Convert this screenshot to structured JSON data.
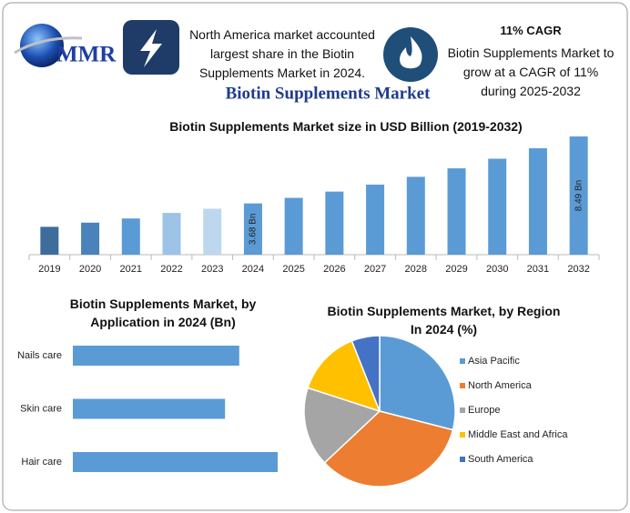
{
  "header": {
    "logo": "MMR",
    "highlight": "North America market accounted largest share in the Biotin Supplements Market in 2024.",
    "cagr_title": "11% CAGR",
    "cagr_text": "Biotin Supplements Market to grow at a CAGR of 11% during 2025-2032"
  },
  "title": "Biotin Supplements Market",
  "chart_data": [
    {
      "type": "bar",
      "title": "Biotin Supplements Market size in USD Billion (2019-2032)",
      "categories": [
        "2019",
        "2020",
        "2021",
        "2022",
        "2023",
        "2024",
        "2025",
        "2026",
        "2027",
        "2028",
        "2029",
        "2030",
        "2031",
        "2032"
      ],
      "values": [
        2.0,
        2.3,
        2.6,
        3.0,
        3.3,
        3.68,
        4.08,
        4.53,
        5.03,
        5.59,
        6.2,
        6.89,
        7.64,
        8.49
      ],
      "value_labels": [
        null,
        null,
        null,
        null,
        null,
        "3.68 Bn",
        null,
        null,
        null,
        null,
        null,
        null,
        null,
        "8.49 Bn"
      ],
      "colors": [
        "#3d6d9c",
        "#4a82bb",
        "#5b9bd5",
        "#9dc3e6",
        "#bdd7ee",
        "#5b9bd5",
        "#5b9bd5",
        "#5b9bd5",
        "#5b9bd5",
        "#5b9bd5",
        "#5b9bd5",
        "#5b9bd5",
        "#5b9bd5",
        "#5b9bd5"
      ]
    },
    {
      "type": "bar",
      "orientation": "horizontal",
      "title": "Biotin Supplements Market, by Application in 2024 (Bn)",
      "categories": [
        "Nails care",
        "Skin care",
        "Hair care"
      ],
      "values": [
        1.17,
        1.07,
        1.44
      ],
      "color": "#5b9bd5"
    },
    {
      "type": "pie",
      "title": "Biotin Supplements Market, by Region In 2024 (%)",
      "categories": [
        "Asia Pacific",
        "North America",
        "Europe",
        "Middle East and Africa",
        "South America"
      ],
      "values": [
        29,
        34,
        17,
        14,
        6
      ],
      "colors": [
        "#5b9bd5",
        "#ed7d31",
        "#a5a5a5",
        "#ffc000",
        "#4472c4"
      ]
    }
  ]
}
